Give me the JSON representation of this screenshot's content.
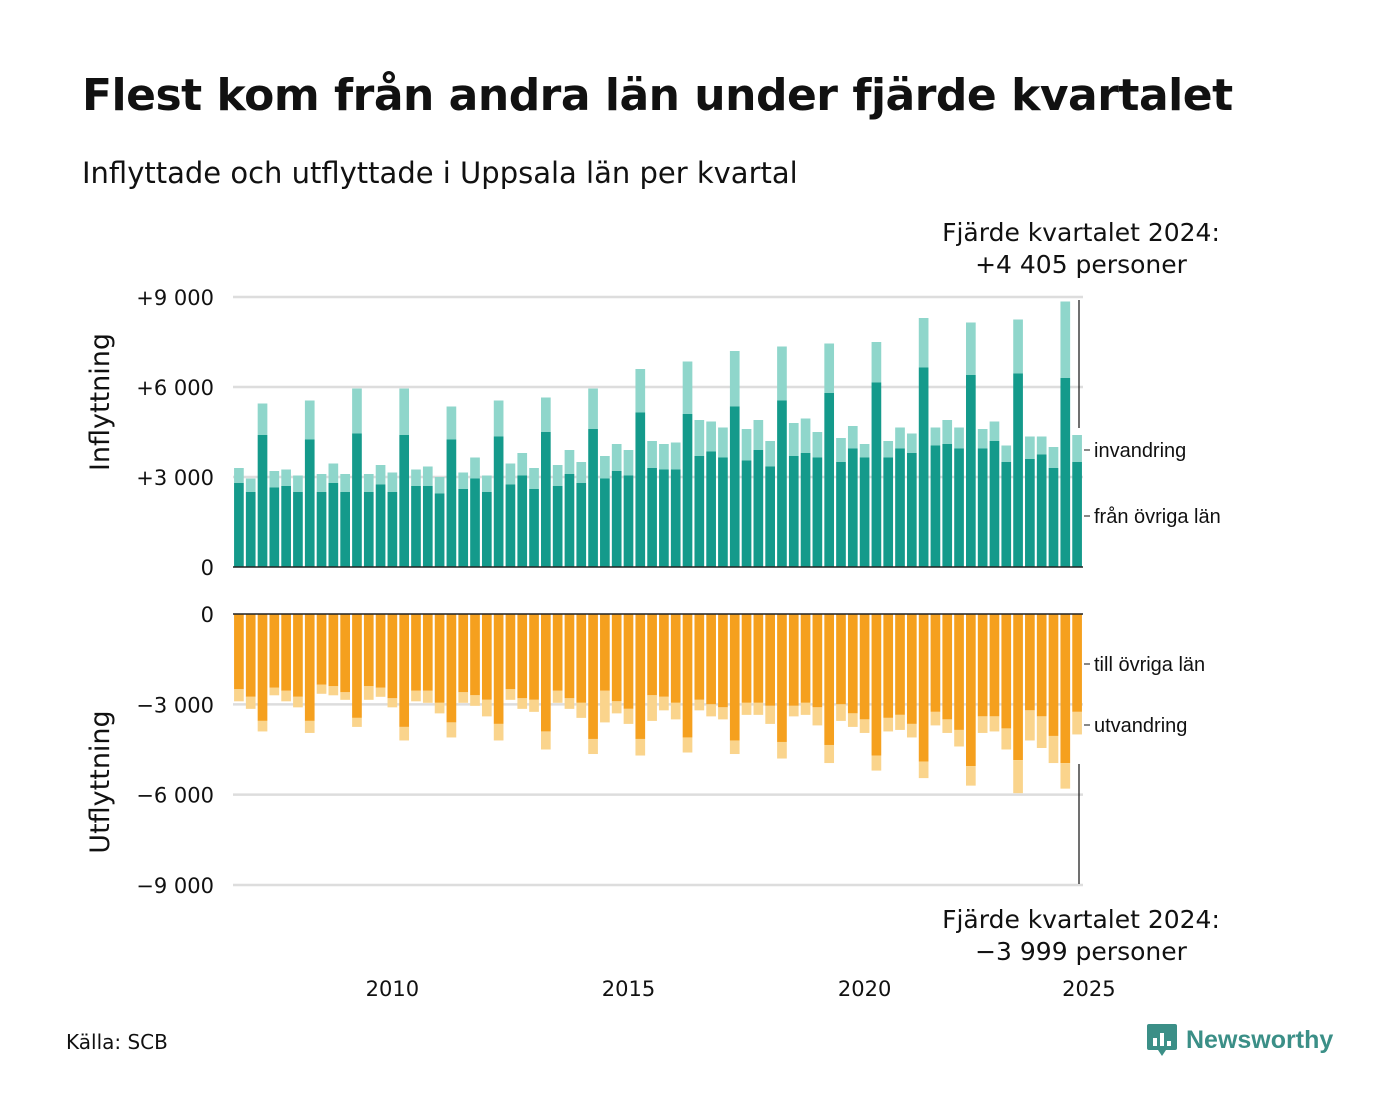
{
  "title": "Flest kom från andra län under fjärde kvartalet",
  "subtitle": "Inflyttade och utflyttade i Uppsala län per kvartal",
  "source": "Källa: SCB",
  "logo_text": "Newsworthy",
  "annotation_top": [
    "Fjärde kvartalet 2024:",
    "+4 405 personer"
  ],
  "annotation_bottom": [
    "Fjärde kvartalet 2024:",
    "−3 999 personer"
  ],
  "colors": {
    "from_other_counties": "#149a8b",
    "immigration": "#8fd6cb",
    "to_other_counties": "#f5a01e",
    "emigration": "#fad48c",
    "grid": "#dddddd",
    "logo": "#3b8f87"
  },
  "chart_data": [
    {
      "type": "bar",
      "stacked": true,
      "ylabel": "Inflyttning",
      "ylim": [
        0,
        9000
      ],
      "yticks": [
        0,
        3000,
        6000,
        9000
      ],
      "ytick_labels": [
        "0",
        "+3 000",
        "+6 000",
        "+9 000"
      ],
      "grid": true,
      "x_start": "2007 Q1",
      "x_end": "2024 Q4",
      "series": [
        {
          "name": "från övriga län",
          "values": [
            2800,
            2500,
            4400,
            2650,
            2700,
            2500,
            4250,
            2500,
            2800,
            2500,
            4450,
            2500,
            2750,
            2500,
            4400,
            2700,
            2700,
            2450,
            4250,
            2600,
            2950,
            2500,
            4350,
            2750,
            3050,
            2600,
            4500,
            2700,
            3100,
            2800,
            4600,
            2950,
            3200,
            3050,
            5150,
            3300,
            3250,
            3250,
            5100,
            3700,
            3850,
            3650,
            5350,
            3550,
            3900,
            3350,
            5550,
            3700,
            3800,
            3650,
            5800,
            3500,
            3950,
            3650,
            6150,
            3650,
            3950,
            3800,
            6650,
            4050,
            4100,
            3950,
            6400,
            3950,
            4200,
            3500,
            6450,
            3600,
            3750,
            3300,
            6300,
            3500
          ]
        },
        {
          "name": "invandring",
          "values": [
            500,
            450,
            1050,
            550,
            550,
            550,
            1300,
            600,
            650,
            600,
            1500,
            600,
            650,
            650,
            1550,
            550,
            650,
            550,
            1100,
            550,
            700,
            550,
            1200,
            700,
            750,
            700,
            1150,
            700,
            800,
            700,
            1350,
            750,
            900,
            850,
            1450,
            900,
            850,
            900,
            1750,
            1200,
            1000,
            1000,
            1850,
            1050,
            1000,
            850,
            1800,
            1100,
            1150,
            850,
            1650,
            800,
            750,
            450,
            1350,
            550,
            700,
            650,
            1650,
            600,
            800,
            700,
            1750,
            650,
            650,
            550,
            1800,
            750,
            600,
            700,
            2550,
            900
          ]
        }
      ],
      "legend": [
        "invandring",
        "från övriga län"
      ]
    },
    {
      "type": "bar",
      "stacked": true,
      "ylabel": "Utflyttning",
      "ylim": [
        -9000,
        0
      ],
      "yticks": [
        0,
        -3000,
        -6000,
        -9000
      ],
      "ytick_labels": [
        "0",
        "−3 000",
        "−6 000",
        "−9 000"
      ],
      "x_tick_labels": [
        "2010",
        "2015",
        "2020",
        "2025"
      ],
      "x_ticks_at": [
        "2010 Q2",
        "2015 Q2",
        "2020 Q2",
        "2025 Q1"
      ],
      "grid": true,
      "series": [
        {
          "name": "till övriga län",
          "values": [
            -2500,
            -2750,
            -3550,
            -2450,
            -2550,
            -2750,
            -3550,
            -2350,
            -2400,
            -2600,
            -3450,
            -2400,
            -2450,
            -2800,
            -3750,
            -2550,
            -2550,
            -2950,
            -3600,
            -2600,
            -2700,
            -2850,
            -3650,
            -2500,
            -2800,
            -2850,
            -3900,
            -2550,
            -2800,
            -2950,
            -4150,
            -2550,
            -2900,
            -3150,
            -4150,
            -2700,
            -2750,
            -2950,
            -4100,
            -2850,
            -3000,
            -3100,
            -4200,
            -2950,
            -2950,
            -3050,
            -4250,
            -3050,
            -2950,
            -3100,
            -4350,
            -3000,
            -3300,
            -3500,
            -4700,
            -3450,
            -3350,
            -3650,
            -4900,
            -3250,
            -3500,
            -3850,
            -5050,
            -3400,
            -3400,
            -3800,
            -4850,
            -3200,
            -3400,
            -4050,
            -4950,
            -3250
          ]
        },
        {
          "name": "utvandring",
          "values": [
            -400,
            -400,
            -350,
            -250,
            -350,
            -350,
            -400,
            -300,
            -300,
            -250,
            -300,
            -450,
            -300,
            -300,
            -450,
            -350,
            -400,
            -350,
            -500,
            -350,
            -350,
            -550,
            -550,
            -350,
            -350,
            -400,
            -600,
            -400,
            -350,
            -500,
            -500,
            -1050,
            -400,
            -500,
            -550,
            -850,
            -450,
            -550,
            -500,
            -350,
            -400,
            -400,
            -450,
            -400,
            -400,
            -600,
            -550,
            -350,
            -400,
            -600,
            -600,
            -550,
            -450,
            -450,
            -500,
            -450,
            -500,
            -450,
            -550,
            -450,
            -450,
            -550,
            -650,
            -550,
            -500,
            -700,
            -1100,
            -1000,
            -1050,
            -900,
            -850,
            -750
          ]
        }
      ],
      "legend": [
        "till övriga län",
        "utvandring"
      ]
    }
  ]
}
